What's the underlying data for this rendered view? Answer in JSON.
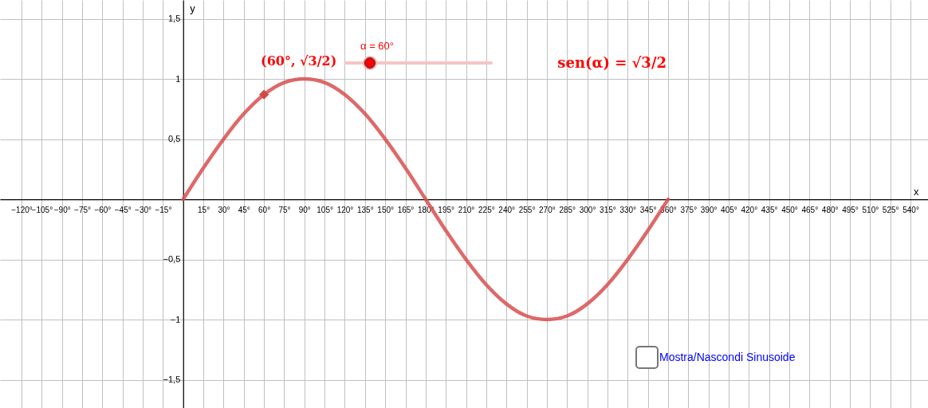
{
  "chart_data": {
    "type": "line",
    "xlabel": "x",
    "ylabel": "y",
    "x": [
      0,
      15,
      30,
      45,
      60,
      75,
      90,
      105,
      120,
      135,
      150,
      165,
      180,
      195,
      210,
      225,
      240,
      255,
      270,
      285,
      300,
      315,
      330,
      345,
      360
    ],
    "series": [
      {
        "color": "#d84f4f",
        "line_style": "solid",
        "marker": "none",
        "values": [
          0,
          0.26,
          0.5,
          0.71,
          0.87,
          0.97,
          1,
          0.97,
          0.87,
          0.71,
          0.5,
          0.26,
          0,
          -0.26,
          -0.5,
          -0.71,
          -0.87,
          -0.97,
          -1,
          -0.97,
          -0.87,
          -0.71,
          -0.5,
          -0.26,
          0
        ]
      },
      {
        "type": "scatter",
        "marker": "diamond",
        "color": "#d04848",
        "x": [
          60
        ],
        "values": [
          0.87
        ]
      }
    ],
    "xlim": [
      -136,
      553
    ],
    "ylim": [
      -1.735,
      1.656
    ],
    "xticks": [
      {
        "value": -120,
        "label": "−120°"
      },
      {
        "value": -105,
        "label": "−105°"
      },
      {
        "value": -90,
        "label": "−90°"
      },
      {
        "value": -75,
        "label": "−75°"
      },
      {
        "value": -60,
        "label": "−60°"
      },
      {
        "value": -45,
        "label": "−45°"
      },
      {
        "value": -30,
        "label": "−30°"
      },
      {
        "value": -15,
        "label": "−15°"
      },
      {
        "value": 0,
        "label": null
      },
      {
        "value": 15,
        "label": "15°"
      },
      {
        "value": 30,
        "label": "30°"
      },
      {
        "value": 45,
        "label": "45°"
      },
      {
        "value": 60,
        "label": "60°"
      },
      {
        "value": 75,
        "label": "75°"
      },
      {
        "value": 90,
        "label": "90°"
      },
      {
        "value": 105,
        "label": "105°"
      },
      {
        "value": 120,
        "label": "120°"
      },
      {
        "value": 135,
        "label": "135°"
      },
      {
        "value": 150,
        "label": "150°"
      },
      {
        "value": 165,
        "label": "165°"
      },
      {
        "value": 180,
        "label": "180°"
      },
      {
        "value": 195,
        "label": "195°"
      },
      {
        "value": 210,
        "label": "210°"
      },
      {
        "value": 225,
        "label": "225°"
      },
      {
        "value": 240,
        "label": "240°"
      },
      {
        "value": 255,
        "label": "255°"
      },
      {
        "value": 270,
        "label": "270°"
      },
      {
        "value": 285,
        "label": "285°"
      },
      {
        "value": 300,
        "label": "300°"
      },
      {
        "value": 315,
        "label": "315°"
      },
      {
        "value": 330,
        "label": "330°"
      },
      {
        "value": 345,
        "label": "345°"
      },
      {
        "value": 360,
        "label": "360°"
      },
      {
        "value": 375,
        "label": "375°"
      },
      {
        "value": 390,
        "label": "390°"
      },
      {
        "value": 405,
        "label": "405°"
      },
      {
        "value": 420,
        "label": "420°"
      },
      {
        "value": 435,
        "label": "435°"
      },
      {
        "value": 450,
        "label": "450°"
      },
      {
        "value": 465,
        "label": "465°"
      },
      {
        "value": 480,
        "label": "480°"
      },
      {
        "value": 495,
        "label": "495°"
      },
      {
        "value": 510,
        "label": "510°"
      },
      {
        "value": 525,
        "label": "525°"
      },
      {
        "value": 540,
        "label": "540°"
      }
    ],
    "yticks": [
      {
        "value": -1.5,
        "label": "−1,5"
      },
      {
        "value": -1,
        "label": "−1"
      },
      {
        "value": -0.5,
        "label": "−0,5"
      },
      {
        "value": 0,
        "label": null
      },
      {
        "value": 0.5,
        "label": "0,5"
      },
      1,
      {
        "value": 1.5,
        "label": "1,5"
      }
    ],
    "grid": true,
    "annotations": [
      {
        "text": "(60°, √3/2)",
        "x": 60,
        "y": 0.87
      },
      "α = 60°",
      "sen(α) = √3/2",
      "Mostra/Nascondi Sinusoide"
    ]
  }
}
